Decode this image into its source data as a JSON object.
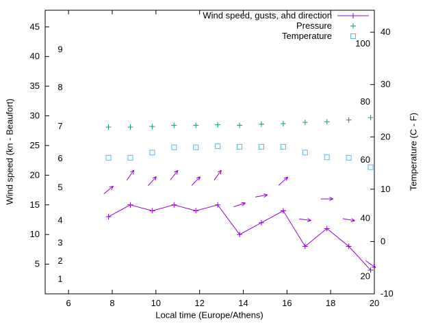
{
  "chart_data": {
    "type": "line",
    "xlabel": "Local time (Europe/Athens)",
    "ylabel_left": "Wind speed (kn - Beaufort)",
    "ylabel_right": "Temperature (C - F)",
    "x_range": [
      4.93,
      20
    ],
    "x_ticks": [
      6,
      8,
      10,
      12,
      14,
      16,
      18,
      20
    ],
    "left_axis": {
      "range": [
        0,
        47.8
      ],
      "ticks": [
        5,
        10,
        15,
        20,
        25,
        30,
        35,
        40,
        45
      ],
      "inner_scale_name": "Beaufort",
      "inner_labels": [
        {
          "text": "1",
          "value": 2.5
        },
        {
          "text": "2",
          "value": 5.5
        },
        {
          "text": "3",
          "value": 8.6
        },
        {
          "text": "4",
          "value": 12.4
        },
        {
          "text": "5",
          "value": 17.9
        },
        {
          "text": "6",
          "value": 22.8
        },
        {
          "text": "7",
          "value": 28.2
        },
        {
          "text": "8",
          "value": 34.8
        },
        {
          "text": "9",
          "value": 41.2
        }
      ]
    },
    "right_axis": {
      "range": [
        -10,
        44.2
      ],
      "ticks": [
        -10,
        0,
        10,
        20,
        30,
        40
      ],
      "inner_scale_name": "Fahrenheit",
      "inner_labels": [
        {
          "text": "20",
          "value": -6.7
        },
        {
          "text": "40",
          "value": 4.4
        },
        {
          "text": "60",
          "value": 15.6
        },
        {
          "text": "80",
          "value": 26.7
        },
        {
          "text": "100",
          "value": 37.8
        }
      ]
    },
    "x": [
      7.83,
      8.83,
      9.83,
      10.83,
      11.83,
      12.83,
      13.83,
      14.83,
      15.83,
      16.83,
      17.83,
      18.83,
      19.83
    ],
    "series": [
      {
        "name": "Wind speed, gusts, and direction",
        "color": "#9400d3",
        "marker": "plus",
        "style": "linespoints",
        "axis": "left",
        "values": [
          13,
          15,
          14,
          15,
          14,
          15,
          10,
          12,
          14,
          8,
          11,
          8,
          4
        ],
        "gusts": [
          17.5,
          20,
          19,
          20,
          19,
          20,
          15,
          16.5,
          19,
          12.5,
          16,
          12.5,
          5
        ],
        "directions_deg": [
          40,
          55,
          48,
          52,
          46,
          55,
          18,
          10,
          42,
          -8,
          0,
          -10,
          -35
        ]
      },
      {
        "name": "Pressure",
        "color": "#009e73",
        "marker": "plus",
        "style": "points",
        "axis": "left",
        "values": [
          28.1,
          28.1,
          28.2,
          28.4,
          28.4,
          28.5,
          28.4,
          28.6,
          28.7,
          28.9,
          29.0,
          29.3,
          29.7
        ]
      },
      {
        "name": "Temperature",
        "color": "#56b4e9",
        "marker": "open-square",
        "style": "points",
        "axis": "right",
        "values": [
          16,
          16,
          17,
          18,
          18,
          18.2,
          18.1,
          18.1,
          18.1,
          17,
          16.1,
          16,
          14.2
        ]
      }
    ],
    "legend_position": "top-right-inside"
  }
}
